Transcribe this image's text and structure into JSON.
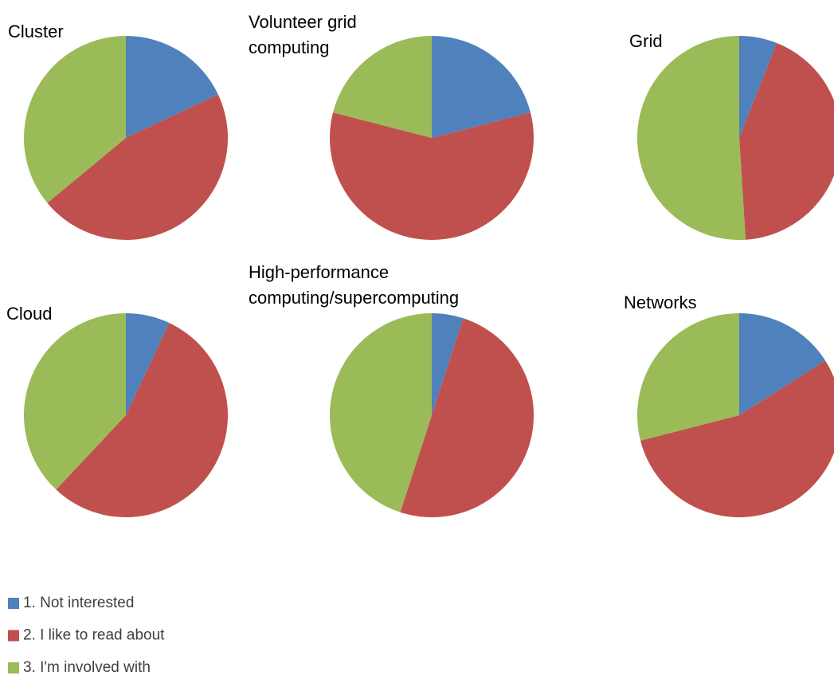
{
  "legend": {
    "items": [
      {
        "name": "1. Not interested",
        "color": "#4f81bd"
      },
      {
        "name": "2. I like to read about",
        "color": "#c0504d"
      },
      {
        "name": "3. I'm involved with",
        "color": "#9bbb59"
      }
    ]
  },
  "chart_data": [
    {
      "type": "pie",
      "title": "Cluster",
      "values": [
        18,
        46,
        36
      ]
    },
    {
      "type": "pie",
      "title": "Volunteer grid computing",
      "values": [
        21,
        58,
        21
      ]
    },
    {
      "type": "pie",
      "title": "Grid",
      "values": [
        6,
        43,
        51
      ]
    },
    {
      "type": "pie",
      "title": "Cloud",
      "values": [
        7,
        55,
        38
      ]
    },
    {
      "type": "pie",
      "title": "High-performance computing/supercomputing",
      "values": [
        5,
        50,
        45
      ]
    },
    {
      "type": "pie",
      "title": "Networks",
      "values": [
        16,
        55,
        29
      ]
    }
  ]
}
